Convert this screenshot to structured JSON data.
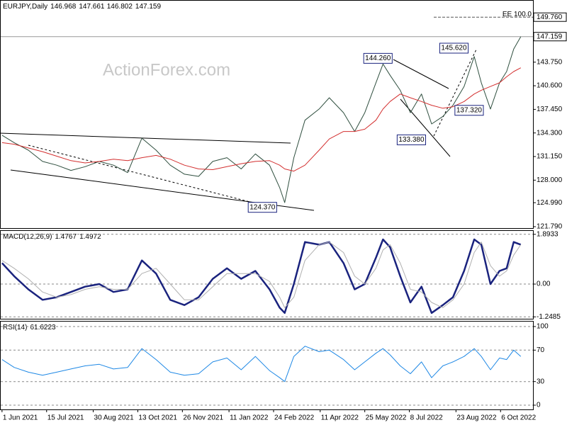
{
  "chart_data": [
    {
      "type": "line",
      "title": "EURJPY,Daily",
      "ohlc": [
        146.968,
        147.661,
        146.802,
        147.159
      ],
      "watermark": "ActionForex.com",
      "xlim": [
        "2021-05-30",
        "2022-11-07"
      ],
      "x": [
        "2021-06-01",
        "2021-06-13",
        "2021-06-27",
        "2021-07-11",
        "2021-07-25",
        "2021-08-08",
        "2021-08-22",
        "2021-09-05",
        "2021-09-19",
        "2021-10-03",
        "2021-10-17",
        "2021-10-31",
        "2021-11-14",
        "2021-11-28",
        "2021-12-12",
        "2021-12-26",
        "2022-01-09",
        "2022-01-23",
        "2022-02-06",
        "2022-02-20",
        "2022-03-02",
        "2022-03-07",
        "2022-03-16",
        "2022-03-27",
        "2022-04-10",
        "2022-04-20",
        "2022-05-04",
        "2022-05-15",
        "2022-05-25",
        "2022-06-05",
        "2022-06-12",
        "2022-06-19",
        "2022-06-29",
        "2022-07-09",
        "2022-07-20",
        "2022-07-30",
        "2022-08-10",
        "2022-08-20",
        "2022-08-31",
        "2022-09-10",
        "2022-09-17",
        "2022-09-26",
        "2022-10-05",
        "2022-10-12",
        "2022-10-19",
        "2022-10-26"
      ],
      "series": [
        {
          "color": "#2f4f3f",
          "values": [
            134.0,
            133.0,
            132.0,
            130.5,
            130.0,
            129.3,
            129.8,
            130.5,
            130.0,
            129.0,
            133.6,
            132.0,
            130.0,
            128.8,
            128.5,
            130.5,
            131.0,
            129.5,
            131.5,
            130.0,
            127.0,
            125.0,
            131.0,
            136.0,
            137.5,
            139.0,
            137.0,
            134.5,
            137.0,
            141.0,
            143.5,
            142.0,
            140.0,
            137.0,
            139.5,
            135.5,
            136.5,
            138.0,
            140.5,
            144.5,
            141.0,
            137.5,
            141.0,
            142.5,
            145.5,
            147.159
          ]
        },
        {
          "color": "#d32f2f",
          "values": [
            133.0,
            132.8,
            132.3,
            131.8,
            131.2,
            130.6,
            130.3,
            130.5,
            130.8,
            130.6,
            131.0,
            131.3,
            130.8,
            130.0,
            129.5,
            129.4,
            129.8,
            130.2,
            130.5,
            130.6,
            130.0,
            129.5,
            129.2,
            130.0,
            132.0,
            133.5,
            134.5,
            134.5,
            134.8,
            136.0,
            137.5,
            138.5,
            139.5,
            139.0,
            138.5,
            138.0,
            137.6,
            137.8,
            138.5,
            139.5,
            140.0,
            140.5,
            141.0,
            141.8,
            142.5,
            143.0
          ]
        }
      ],
      "ylim": [
        121.6,
        152.05
      ],
      "yticks": [
        {
          "value": 143.75,
          "label": "143.750"
        },
        {
          "value": 140.6,
          "label": "140.600"
        },
        {
          "value": 137.45,
          "label": "137.450"
        },
        {
          "value": 134.3,
          "label": "134.300"
        },
        {
          "value": 131.15,
          "label": "131.150"
        },
        {
          "value": 128,
          "label": "128.000"
        },
        {
          "value": 124.99,
          "label": "124.990"
        },
        {
          "value": 121.79,
          "label": "121.790"
        }
      ],
      "levels": [
        {
          "value": 149.76,
          "label": "149.760",
          "text": "EE 100.0"
        },
        {
          "value": 147.159,
          "label": "147.159"
        }
      ],
      "annotations": [
        {
          "x": "2022-06-07",
          "y": {
            "value": 144.26,
            "label": "144.260"
          }
        },
        {
          "x": "2022-08-21",
          "y": {
            "value": 145.62,
            "label": "145.620"
          }
        },
        {
          "x": "2022-09-05",
          "y": {
            "value": 137.32,
            "label": "137.320"
          }
        },
        {
          "x": "2022-07-10",
          "y": {
            "value": 133.38,
            "label": "133.380"
          }
        },
        {
          "x": "2022-02-13",
          "y": {
            "value": 124.37,
            "label": "124.370"
          }
        }
      ],
      "grid": false
    },
    {
      "type": "line",
      "title": "MACD(12,26,9)",
      "readout": [
        1.4767,
        1.4972
      ],
      "series": [
        {
          "color": "#1a237e",
          "width": 2.5,
          "values": [
            0.8,
            0.3,
            -0.2,
            -0.6,
            -0.5,
            -0.3,
            -0.1,
            0.0,
            -0.3,
            -0.2,
            0.9,
            0.4,
            -0.6,
            -0.8,
            -0.5,
            0.2,
            0.6,
            0.2,
            0.5,
            -0.2,
            -0.9,
            -1.1,
            0.0,
            1.6,
            1.5,
            1.6,
            0.8,
            -0.2,
            0.0,
            1.0,
            1.7,
            1.4,
            0.3,
            -0.7,
            -0.1,
            -1.1,
            -0.8,
            -0.5,
            0.5,
            1.7,
            1.5,
            0.0,
            0.5,
            0.6,
            1.6,
            1.5
          ]
        },
        {
          "color": "#b0b0b0",
          "width": 1,
          "values": [
            0.9,
            0.6,
            0.2,
            -0.3,
            -0.5,
            -0.4,
            -0.2,
            -0.1,
            -0.2,
            -0.2,
            0.4,
            0.6,
            0.0,
            -0.6,
            -0.6,
            -0.1,
            0.4,
            0.4,
            0.4,
            0.1,
            -0.5,
            -0.9,
            -0.5,
            0.9,
            1.5,
            1.6,
            1.2,
            0.3,
            0.0,
            0.6,
            1.3,
            1.5,
            0.8,
            -0.2,
            -0.3,
            -0.7,
            -0.9,
            -0.6,
            0.0,
            1.2,
            1.6,
            0.7,
            0.3,
            0.5,
            1.1,
            1.5
          ]
        }
      ],
      "ylim": [
        -1.32,
        2.05
      ],
      "yticks": [
        1.8933,
        {
          "value": 0,
          "label": "0.00"
        },
        -1.2485
      ],
      "grid": true
    },
    {
      "type": "line",
      "title": "RSI(14)",
      "readout": [
        61.6223
      ],
      "series": [
        {
          "color": "#1e88e5",
          "width": 1,
          "values": [
            58,
            48,
            42,
            38,
            42,
            46,
            50,
            52,
            46,
            48,
            72,
            58,
            42,
            38,
            40,
            55,
            60,
            45,
            62,
            44,
            35,
            30,
            62,
            75,
            68,
            70,
            58,
            45,
            55,
            66,
            72,
            64,
            50,
            40,
            55,
            35,
            50,
            55,
            62,
            72,
            62,
            45,
            60,
            58,
            70,
            62
          ]
        }
      ],
      "ylim": [
        -5.4,
        107.2
      ],
      "yticks": [
        100,
        70,
        30,
        0
      ],
      "grid": true,
      "xticks": [
        {
          "value": "2021-06-01",
          "label": "1 Jun 2021"
        },
        {
          "value": "2021-07-15",
          "label": "15 Jul 2021"
        },
        {
          "value": "2021-08-30",
          "label": "30 Aug 2021"
        },
        {
          "value": "2021-10-13",
          "label": "13 Oct 2021"
        },
        {
          "value": "2021-11-26",
          "label": "26 Nov 2021"
        },
        {
          "value": "2022-01-11",
          "label": "11 Jan 2022"
        },
        {
          "value": "2022-02-24",
          "label": "24 Feb 2022"
        },
        {
          "value": "2022-04-11",
          "label": "11 Apr 2022"
        },
        {
          "value": "2022-05-25",
          "label": "25 May 2022"
        },
        {
          "value": "2022-07-08",
          "label": "8 Jul 2022"
        },
        {
          "value": "2022-08-23",
          "label": "23 Aug 2022"
        },
        {
          "value": "2022-10-06",
          "label": "6 Oct 2022"
        }
      ]
    }
  ]
}
